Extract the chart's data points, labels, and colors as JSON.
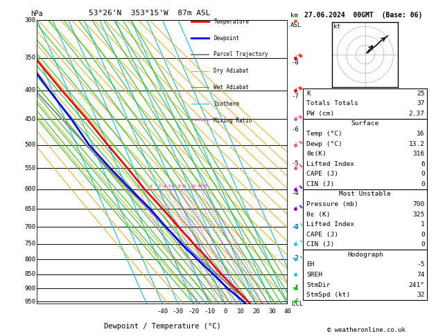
{
  "title_left": "53°26'N  353°15'W  87m ASL",
  "title_right": "27.06.2024  00GMT  (Base: 06)",
  "xlabel": "Dewpoint / Temperature (°C)",
  "ylabel_left": "hPa",
  "ylabel_right_top": "km",
  "ylabel_right_bot": "ASL",
  "bg_color": "#ffffff",
  "pressure_levels": [
    300,
    350,
    400,
    450,
    500,
    550,
    600,
    650,
    700,
    750,
    800,
    850,
    900,
    950
  ],
  "pressure_min": 300,
  "pressure_max": 960,
  "temp_min": -40,
  "temp_max": 40,
  "skew_deg": 45,
  "temp_profile": {
    "pressure": [
      960,
      950,
      900,
      850,
      800,
      750,
      700,
      650,
      600,
      550,
      500,
      450,
      400,
      350,
      300
    ],
    "temperature": [
      16,
      15.5,
      11,
      6,
      2,
      -3,
      -8,
      -13,
      -19,
      -24,
      -30,
      -36,
      -44,
      -52,
      -60
    ]
  },
  "dewpoint_profile": {
    "pressure": [
      960,
      950,
      900,
      850,
      800,
      750,
      700,
      650,
      600,
      550,
      500,
      450,
      400,
      350,
      300
    ],
    "dewpoint": [
      13.2,
      12.5,
      6,
      1,
      -5,
      -11,
      -16,
      -21,
      -28,
      -35,
      -42,
      -46,
      -52,
      -58,
      -62
    ]
  },
  "parcel_profile": {
    "pressure": [
      960,
      950,
      900,
      850,
      800,
      750,
      700,
      650,
      600,
      550,
      500,
      450,
      400,
      350,
      300
    ],
    "temperature": [
      16,
      15.5,
      9.5,
      3.5,
      -3.0,
      -9.5,
      -16.5,
      -22.5,
      -29.5,
      -36.5,
      -44.0,
      -52.0,
      -61.0,
      -71.0,
      -82.0
    ]
  },
  "isotherm_color": "#00bfff",
  "dry_adiabat_color": "#ffa500",
  "wet_adiabat_color": "#00cc00",
  "mixing_ratio_color": "#ff00ff",
  "temp_color": "#ff0000",
  "dewpoint_color": "#0000ff",
  "parcel_color": "#888888",
  "mixing_ratios": [
    1,
    2,
    3,
    4,
    5,
    6,
    8,
    10,
    15,
    20,
    25
  ],
  "km_altitudes": [
    1,
    2,
    3,
    4,
    5,
    6,
    7,
    8
  ],
  "km_pressures": [
    899,
    795,
    700,
    609,
    540,
    470,
    410,
    357
  ],
  "wind_pressures": [
    950,
    900,
    850,
    800,
    750,
    700,
    650,
    600,
    550,
    500,
    450,
    400,
    350,
    300
  ],
  "wind_u": [
    3,
    5,
    7,
    9,
    11,
    14,
    16,
    18,
    20,
    22,
    24,
    26,
    23,
    20
  ],
  "wind_v": [
    2,
    3,
    5,
    7,
    9,
    11,
    13,
    15,
    17,
    19,
    21,
    23,
    20,
    17
  ],
  "wind_colors": [
    "#00cc00",
    "#00cc00",
    "#00ccff",
    "#00ccff",
    "#00ccff",
    "#00ccff",
    "#8800cc",
    "#8800cc",
    "#ff44aa",
    "#ff44aa",
    "#ff44aa",
    "#ff0000",
    "#ff0000",
    "#ff4400"
  ],
  "stats": {
    "K": 25,
    "Totals_Totals": 37,
    "PW_cm": 2.37,
    "Surface_Temp": 16,
    "Surface_Dewp": 13.2,
    "Surface_thetae": 316,
    "Surface_LI": 6,
    "Surface_CAPE": 0,
    "Surface_CIN": 0,
    "MU_Pressure": 700,
    "MU_thetae": 325,
    "MU_LI": 1,
    "MU_CAPE": 0,
    "MU_CIN": 0,
    "Hodograph_EH": -5,
    "Hodograph_SREH": 74,
    "Hodograph_StmDir": 241,
    "Hodograph_StmSpd": 32
  }
}
